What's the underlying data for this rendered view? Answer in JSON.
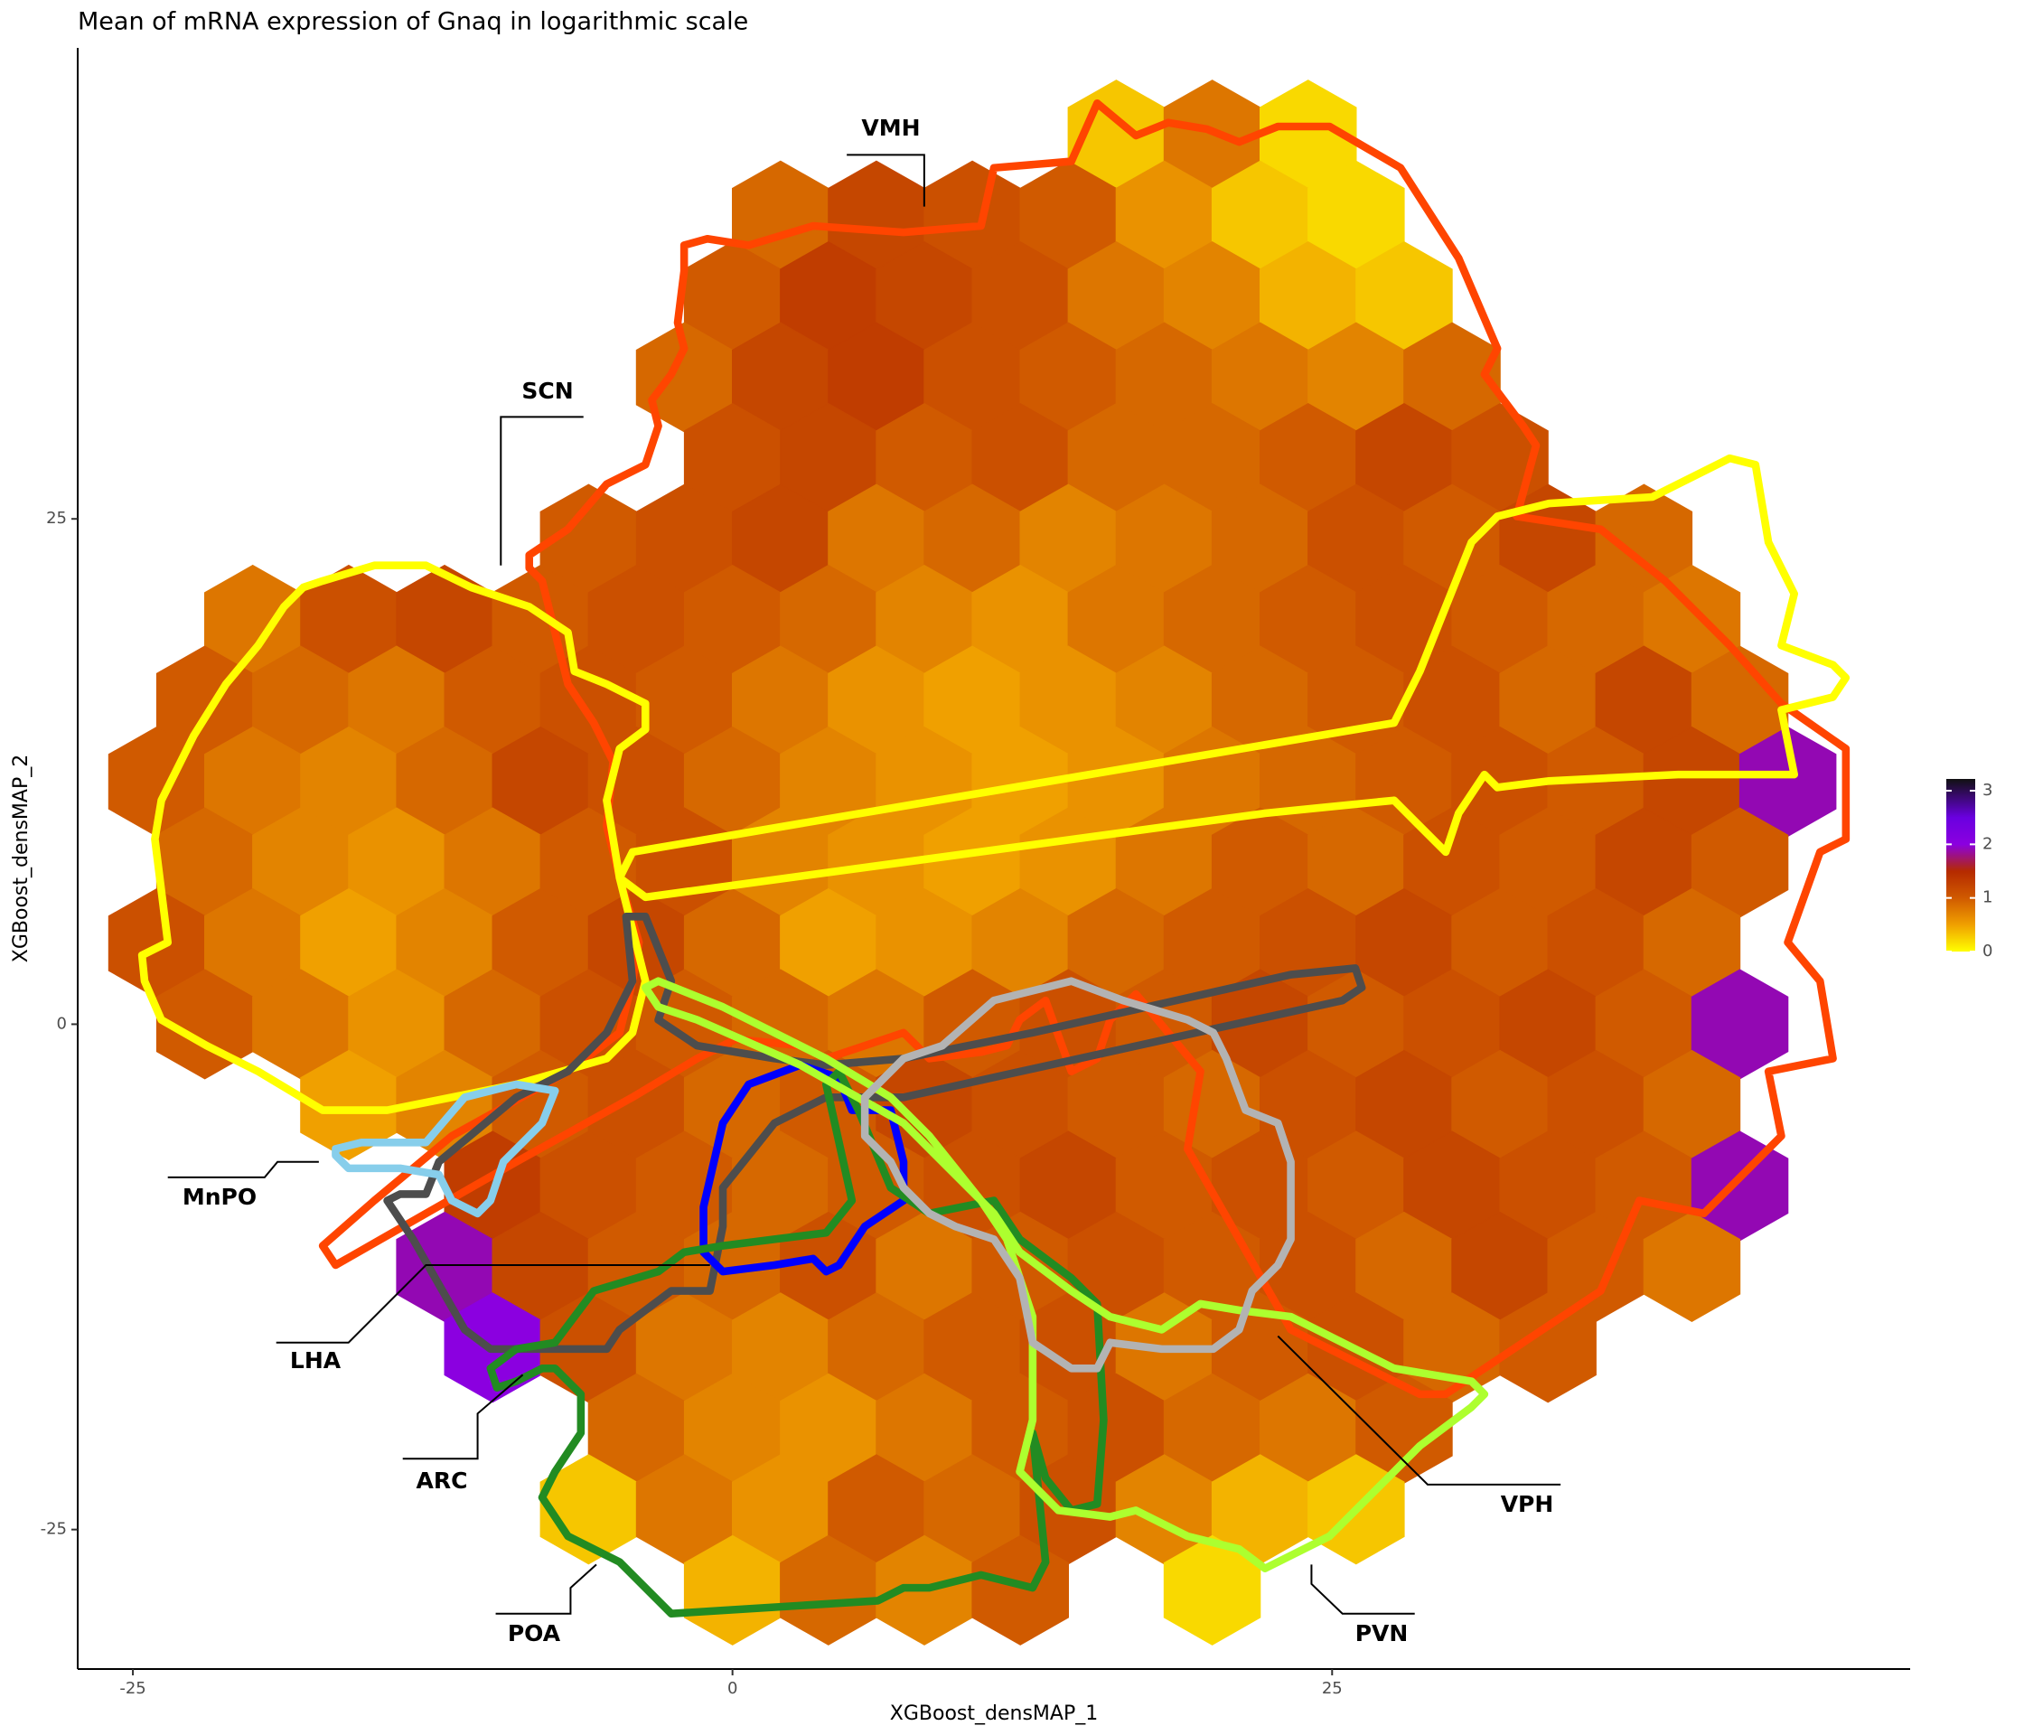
{
  "chart_data": {
    "type": "hexbin",
    "title": "Mean of mRNA expression of Gnaq in logarithmic scale",
    "x_label": "XGBoost_densMAP_1",
    "y_label": "XGBoost_densMAP_2",
    "xlim": [
      -27.3,
      49.1
    ],
    "ylim": [
      -31.9,
      48.3
    ],
    "xticks": [
      -25,
      0,
      25
    ],
    "yticks": [
      -25,
      0,
      25
    ],
    "colorlim": [
      0,
      3.22
    ],
    "colorticks": [
      0,
      1,
      2,
      3
    ],
    "colorscale": [
      [
        0,
        "#ffff00"
      ],
      [
        0.5,
        "#f0a000"
      ],
      [
        1,
        "#d05a00"
      ],
      [
        1.5,
        "#b52a00"
      ],
      [
        2,
        "#8b00e0"
      ],
      [
        2.5,
        "#6a00e0"
      ],
      [
        3.22,
        "#111111"
      ]
    ],
    "rows": [
      {
        "y": 44,
        "x": [
          16,
          20,
          24
        ],
        "values": [
          0.3,
          0.8,
          0.2
        ]
      },
      {
        "y": 40,
        "x": [
          2,
          6,
          10,
          14,
          18,
          22,
          26
        ],
        "values": [
          0.9,
          1.2,
          1.1,
          1.0,
          0.6,
          0.3,
          0.2
        ]
      },
      {
        "y": 36,
        "x": [
          0,
          4,
          8,
          12,
          16,
          20,
          24,
          28
        ],
        "values": [
          1.0,
          1.3,
          1.2,
          1.1,
          0.8,
          0.7,
          0.4,
          0.3
        ]
      },
      {
        "y": 32,
        "x": [
          -2,
          2,
          6,
          10,
          14,
          18,
          22,
          26,
          30
        ],
        "values": [
          0.9,
          1.2,
          1.3,
          1.1,
          1.0,
          0.9,
          0.8,
          0.7,
          0.9
        ]
      },
      {
        "y": 28,
        "x": [
          0,
          4,
          8,
          12,
          16,
          20,
          24,
          28,
          32
        ],
        "values": [
          1.1,
          1.2,
          1.0,
          1.1,
          0.9,
          0.9,
          1.0,
          1.2,
          1.1
        ]
      },
      {
        "y": 24,
        "x": [
          -6,
          -2,
          2,
          6,
          10,
          14,
          18,
          22,
          26,
          30,
          34,
          38
        ],
        "values": [
          1.0,
          1.1,
          1.2,
          0.8,
          0.9,
          0.7,
          0.8,
          0.9,
          1.1,
          1.0,
          1.2,
          0.9
        ]
      },
      {
        "y": 20,
        "x": [
          -20,
          -16,
          -12,
          -8,
          -4,
          0,
          4,
          8,
          12,
          16,
          20,
          24,
          28,
          32,
          36,
          40
        ],
        "values": [
          0.8,
          1.1,
          1.2,
          1.0,
          1.1,
          1.0,
          0.9,
          0.7,
          0.6,
          0.8,
          0.9,
          1.0,
          1.1,
          1.0,
          0.9,
          0.8
        ]
      },
      {
        "y": 16,
        "x": [
          -22,
          -18,
          -14,
          -10,
          -6,
          -2,
          2,
          6,
          10,
          14,
          18,
          22,
          26,
          30,
          34,
          38,
          42
        ],
        "values": [
          1.0,
          0.9,
          0.8,
          1.0,
          1.1,
          1.0,
          0.8,
          0.6,
          0.5,
          0.6,
          0.7,
          0.9,
          1.0,
          1.1,
          0.9,
          1.2,
          0.9
        ]
      },
      {
        "y": 12,
        "x": [
          -24,
          -20,
          -16,
          -12,
          -8,
          -4,
          0,
          4,
          8,
          12,
          16,
          20,
          24,
          28,
          32,
          36,
          40,
          44
        ],
        "values": [
          1.0,
          0.8,
          0.7,
          0.9,
          1.2,
          1.1,
          0.9,
          0.7,
          0.6,
          0.5,
          0.6,
          0.8,
          0.9,
          1.0,
          1.1,
          1.0,
          1.2,
          1.9
        ]
      },
      {
        "y": 8,
        "x": [
          -22,
          -18,
          -14,
          -10,
          -6,
          -2,
          2,
          6,
          10,
          14,
          18,
          22,
          26,
          30,
          34,
          38,
          42
        ],
        "values": [
          0.9,
          0.7,
          0.6,
          0.8,
          1.0,
          1.1,
          0.7,
          0.6,
          0.5,
          0.6,
          0.8,
          1.0,
          0.9,
          1.1,
          1.0,
          1.2,
          1.0
        ]
      },
      {
        "y": 4,
        "x": [
          -24,
          -20,
          -16,
          -12,
          -8,
          -4,
          0,
          4,
          8,
          12,
          16,
          20,
          24,
          28,
          32,
          36,
          40
        ],
        "values": [
          1.1,
          0.8,
          0.5,
          0.7,
          1.0,
          1.2,
          0.9,
          0.5,
          0.6,
          0.7,
          0.9,
          1.0,
          1.1,
          1.2,
          1.0,
          1.1,
          0.9
        ]
      },
      {
        "y": 0,
        "x": [
          -22,
          -18,
          -14,
          -10,
          -6,
          -2,
          2,
          6,
          10,
          14,
          18,
          22,
          26,
          30,
          34,
          38,
          42
        ],
        "values": [
          1.0,
          0.8,
          0.6,
          0.9,
          1.1,
          1.0,
          0.9,
          0.8,
          1.0,
          1.1,
          1.0,
          1.2,
          1.0,
          1.1,
          1.2,
          1.0,
          1.9
        ]
      },
      {
        "y": -4,
        "x": [
          -16,
          -12,
          -8,
          -4,
          0,
          4,
          8,
          12,
          16,
          20,
          24,
          28,
          32,
          36,
          40
        ],
        "values": [
          0.5,
          0.7,
          1.0,
          1.1,
          0.9,
          1.0,
          1.2,
          1.1,
          1.0,
          0.9,
          1.1,
          1.2,
          1.0,
          1.1,
          0.9
        ]
      },
      {
        "y": -8,
        "x": [
          -10,
          -6,
          -2,
          2,
          6,
          10,
          14,
          18,
          22,
          26,
          30,
          34,
          38,
          42
        ],
        "values": [
          1.3,
          1.1,
          1.0,
          0.9,
          1.0,
          1.1,
          1.2,
          1.0,
          1.1,
          1.0,
          1.2,
          1.1,
          1.0,
          1.9
        ]
      },
      {
        "y": -12,
        "x": [
          -12,
          -8,
          -4,
          0,
          4,
          8,
          12,
          16,
          20,
          24,
          28,
          32,
          36,
          40
        ],
        "values": [
          1.9,
          1.2,
          1.0,
          0.9,
          1.1,
          0.8,
          1.0,
          1.1,
          1.0,
          1.1,
          0.9,
          1.2,
          1.0,
          0.8
        ]
      },
      {
        "y": -16,
        "x": [
          -10,
          -6,
          -2,
          2,
          6,
          10,
          14,
          18,
          22,
          26,
          30,
          34
        ],
        "values": [
          2.0,
          1.1,
          0.8,
          0.7,
          0.9,
          1.0,
          1.1,
          0.8,
          1.0,
          1.1,
          0.9,
          1.0
        ]
      },
      {
        "y": -20,
        "x": [
          -4,
          0,
          4,
          8,
          12,
          16,
          20,
          24,
          28
        ],
        "values": [
          0.9,
          0.7,
          0.6,
          0.8,
          1.0,
          1.1,
          0.9,
          0.8,
          1.0
        ]
      },
      {
        "y": -24,
        "x": [
          -6,
          -2,
          2,
          6,
          10,
          14,
          18,
          22,
          26
        ],
        "values": [
          0.3,
          0.8,
          0.6,
          1.0,
          0.9,
          1.1,
          0.7,
          0.4,
          0.3
        ]
      },
      {
        "y": -28,
        "x": [
          0,
          4,
          8,
          12,
          20
        ],
        "values": [
          0.4,
          0.9,
          0.7,
          1.0,
          0.2
        ]
      }
    ],
    "annotations": [
      "VMH",
      "SCN",
      "MnPO",
      "LHA",
      "ARC",
      "POA",
      "PVN",
      "VPH"
    ]
  }
}
